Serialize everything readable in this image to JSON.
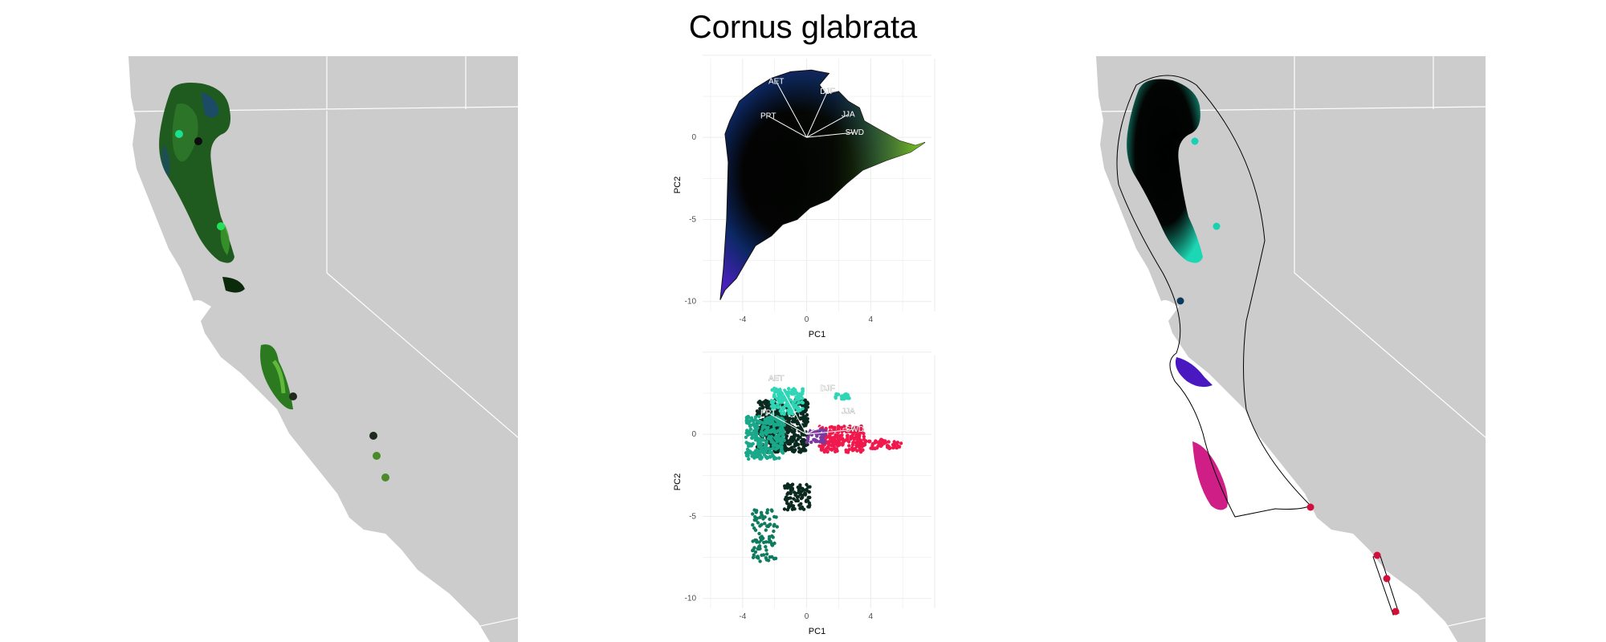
{
  "title": "Cornus glabrata",
  "colors": {
    "land": "#cccccc",
    "background": "#ffffff",
    "border": "#ffffff",
    "grid": "#ebebeb",
    "vector": "#ffffff"
  },
  "chart_data": [
    {
      "type": "map",
      "panel": "left",
      "description_colors": [
        "#0a1a0a",
        "#1f6b1f",
        "#3c9b2c",
        "#1a3fa0"
      ],
      "point_colors": [
        "#1be08e",
        "#0d0d0d",
        "#22e05a",
        "#1e2a1e",
        "#4a8a2a"
      ]
    },
    {
      "type": "scatter",
      "panel": "pca-top",
      "xlabel": "PC1",
      "ylabel": "PC2",
      "xticks": [
        -4,
        0,
        4
      ],
      "yticks": [
        0,
        -5,
        -10
      ],
      "xlim": [
        -6.5,
        7.8
      ],
      "ylim": [
        -10.6,
        4.8
      ],
      "vectors": [
        {
          "label": "AET",
          "x": -1.9,
          "y": 3.4
        },
        {
          "label": "DJF",
          "x": 1.3,
          "y": 2.8
        },
        {
          "label": "JJA",
          "x": 2.6,
          "y": 1.4
        },
        {
          "label": "PPT",
          "x": -2.4,
          "y": 1.3
        },
        {
          "label": "SWD",
          "x": 3.0,
          "y": 0.3
        }
      ]
    },
    {
      "type": "scatter",
      "panel": "pca-bottom",
      "xlabel": "PC1",
      "ylabel": "PC2",
      "xticks": [
        -4,
        0,
        4
      ],
      "yticks": [
        0,
        -5,
        -10
      ],
      "xlim": [
        -6.5,
        7.8
      ],
      "ylim": [
        -10.6,
        4.8
      ],
      "vectors": [
        {
          "label": "AET",
          "x": -1.9,
          "y": 3.4
        },
        {
          "label": "DJF",
          "x": 1.3,
          "y": 2.8
        },
        {
          "label": "JJA",
          "x": 2.6,
          "y": 1.4
        },
        {
          "label": "PPT",
          "x": -2.4,
          "y": 1.3
        },
        {
          "label": "SWD",
          "x": 3.0,
          "y": 0.3
        }
      ],
      "cluster_colors": [
        "#0b2a1f",
        "#1aa88a",
        "#2fd6b6",
        "#0e7a5e",
        "#f0194d",
        "#7a3aa0"
      ]
    },
    {
      "type": "map",
      "panel": "right",
      "cluster_colors": [
        "#000000",
        "#19d1b0",
        "#0d3a5a",
        "#5a20c8",
        "#d8208a",
        "#d0103a"
      ]
    }
  ]
}
